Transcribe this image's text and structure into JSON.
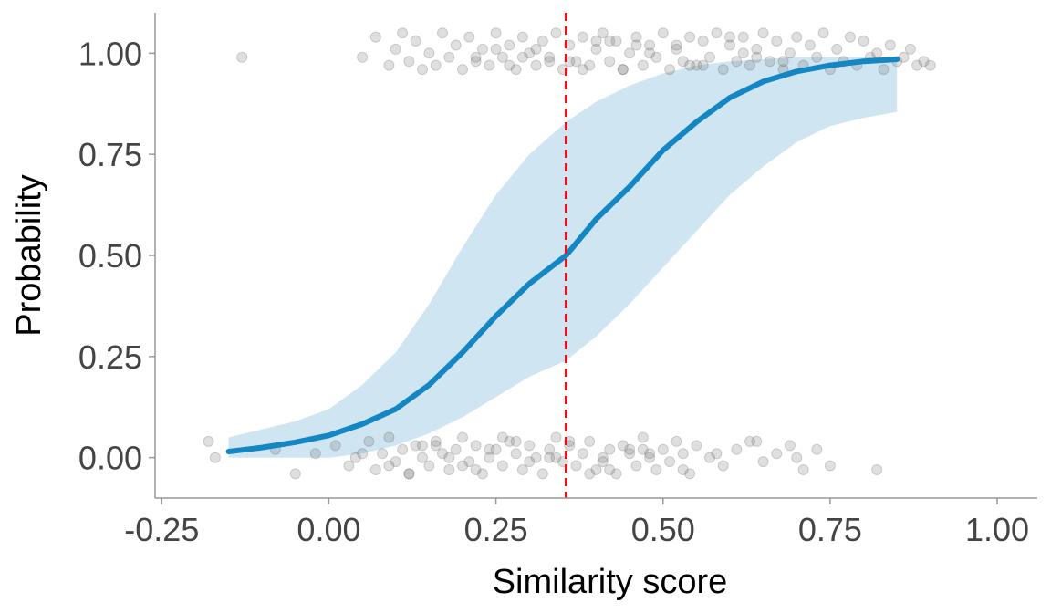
{
  "chart_data": {
    "type": "scatter",
    "title": "",
    "xlabel": "Similarity score",
    "ylabel": "Probability",
    "xlim": [
      -0.26,
      1.06
    ],
    "ylim": [
      -0.1,
      1.1
    ],
    "grid": false,
    "x_ticks": [
      -0.25,
      0.0,
      0.25,
      0.5,
      0.75,
      1.0
    ],
    "x_tick_labels": [
      "-0.25",
      "0.00",
      "0.25",
      "0.50",
      "0.75",
      "1.00"
    ],
    "y_ticks": [
      0.0,
      0.25,
      0.5,
      0.75,
      1.0
    ],
    "y_tick_labels": [
      "0.00",
      "0.25",
      "0.50",
      "0.75",
      "1.00"
    ],
    "threshold_x": 0.355,
    "colors": {
      "fit_line": "#1386c3",
      "ribbon": "#cfe5f2",
      "threshold": "#e8111a",
      "points": "#6e6e6e",
      "axis": "#999999"
    },
    "fit_curve": {
      "x": [
        -0.15,
        -0.1,
        -0.05,
        0.0,
        0.05,
        0.1,
        0.15,
        0.2,
        0.25,
        0.3,
        0.355,
        0.4,
        0.45,
        0.5,
        0.55,
        0.6,
        0.65,
        0.7,
        0.75,
        0.8,
        0.85
      ],
      "y": [
        0.015,
        0.025,
        0.038,
        0.055,
        0.083,
        0.12,
        0.18,
        0.26,
        0.35,
        0.43,
        0.5,
        0.59,
        0.67,
        0.76,
        0.83,
        0.89,
        0.93,
        0.955,
        0.97,
        0.98,
        0.985
      ],
      "lower": [
        0.0,
        0.0,
        0.0,
        0.0,
        0.01,
        0.03,
        0.06,
        0.1,
        0.15,
        0.2,
        0.24,
        0.3,
        0.38,
        0.47,
        0.56,
        0.65,
        0.72,
        0.78,
        0.82,
        0.84,
        0.855
      ],
      "upper": [
        0.05,
        0.07,
        0.09,
        0.12,
        0.18,
        0.26,
        0.38,
        0.52,
        0.65,
        0.75,
        0.83,
        0.88,
        0.92,
        0.95,
        0.97,
        0.98,
        0.985,
        0.99,
        0.99,
        0.99,
        0.99
      ]
    },
    "series": [
      {
        "outcome": 1,
        "x": [
          -0.13,
          0.05,
          0.07,
          0.09,
          0.1,
          0.11,
          0.12,
          0.13,
          0.14,
          0.15,
          0.16,
          0.17,
          0.18,
          0.19,
          0.2,
          0.21,
          0.22,
          0.23,
          0.24,
          0.25,
          0.26,
          0.27,
          0.28,
          0.29,
          0.3,
          0.31,
          0.32,
          0.33,
          0.34,
          0.35,
          0.36,
          0.37,
          0.38,
          0.39,
          0.4,
          0.41,
          0.42,
          0.43,
          0.44,
          0.45,
          0.46,
          0.47,
          0.48,
          0.49,
          0.5,
          0.51,
          0.52,
          0.53,
          0.54,
          0.55,
          0.56,
          0.57,
          0.58,
          0.59,
          0.6,
          0.61,
          0.62,
          0.63,
          0.64,
          0.65,
          0.66,
          0.67,
          0.68,
          0.69,
          0.7,
          0.71,
          0.72,
          0.73,
          0.74,
          0.75,
          0.76,
          0.77,
          0.78,
          0.79,
          0.8,
          0.81,
          0.82,
          0.83,
          0.84,
          0.85,
          0.86,
          0.87,
          0.88,
          0.89,
          0.9,
          0.22,
          0.27,
          0.31,
          0.36,
          0.4,
          0.44,
          0.48,
          0.52,
          0.56,
          0.6,
          0.64,
          0.68,
          0.25,
          0.33,
          0.42,
          0.38,
          0.29,
          0.46,
          0.54,
          0.62
        ],
        "y": [
          0.99,
          0.99,
          1.04,
          0.97,
          1.01,
          1.05,
          0.98,
          1.03,
          0.96,
          1.0,
          0.97,
          1.05,
          0.99,
          1.02,
          0.96,
          1.04,
          0.98,
          1.01,
          0.97,
          1.05,
          0.99,
          1.02,
          0.96,
          1.04,
          1.0,
          0.97,
          1.03,
          0.99,
          1.05,
          0.96,
          1.02,
          0.98,
          1.04,
          0.97,
          1.01,
          1.05,
          0.98,
          1.03,
          0.96,
          1.0,
          1.04,
          0.97,
          1.02,
          0.99,
          1.05,
          0.96,
          1.01,
          0.98,
          1.04,
          0.97,
          1.03,
          0.99,
          1.05,
          0.96,
          1.02,
          0.98,
          1.04,
          0.97,
          1.01,
          1.05,
          0.98,
          1.03,
          0.96,
          1.0,
          1.04,
          0.97,
          1.02,
          0.99,
          1.05,
          0.96,
          1.01,
          0.98,
          1.04,
          0.97,
          1.03,
          0.99,
          1.0,
          0.96,
          1.02,
          0.98,
          0.99,
          1.01,
          0.97,
          0.98,
          0.97,
          0.99,
          0.97,
          1.01,
          0.98,
          1.03,
          0.96,
          1.0,
          1.02,
          0.97,
          1.04,
          0.99,
          0.98,
          1.01,
          0.98,
          1.03,
          0.96,
          0.99,
          1.02,
          0.97,
          1.0
        ]
      },
      {
        "outcome": 0,
        "x": [
          -0.18,
          -0.17,
          -0.08,
          -0.05,
          -0.02,
          0.01,
          0.03,
          0.04,
          0.06,
          0.07,
          0.08,
          0.09,
          0.1,
          0.11,
          0.12,
          0.13,
          0.14,
          0.15,
          0.16,
          0.17,
          0.18,
          0.19,
          0.2,
          0.21,
          0.22,
          0.23,
          0.24,
          0.25,
          0.26,
          0.27,
          0.28,
          0.29,
          0.3,
          0.31,
          0.32,
          0.33,
          0.34,
          0.35,
          0.36,
          0.37,
          0.38,
          0.39,
          0.4,
          0.41,
          0.42,
          0.43,
          0.44,
          0.45,
          0.46,
          0.47,
          0.48,
          0.49,
          0.5,
          0.51,
          0.52,
          0.53,
          0.54,
          0.55,
          0.57,
          0.59,
          0.61,
          0.63,
          0.65,
          0.67,
          0.69,
          0.71,
          0.73,
          0.75,
          0.82,
          0.12,
          0.18,
          0.24,
          0.3,
          0.36,
          0.42,
          0.48,
          0.14,
          0.2,
          0.26,
          0.33,
          0.39,
          0.45,
          0.05,
          0.09,
          0.16,
          0.22,
          0.28,
          0.34,
          0.41,
          0.47,
          0.53,
          0.58,
          0.64,
          0.7
        ],
        "y": [
          0.04,
          0.0,
          0.02,
          -0.04,
          0.01,
          0.03,
          -0.02,
          0.0,
          0.04,
          -0.03,
          0.01,
          0.05,
          -0.01,
          0.02,
          -0.04,
          0.03,
          0.0,
          -0.02,
          0.04,
          0.01,
          -0.03,
          0.02,
          0.05,
          -0.01,
          0.03,
          -0.04,
          0.0,
          0.02,
          -0.02,
          0.04,
          0.01,
          -0.03,
          0.03,
          0.0,
          -0.04,
          0.02,
          0.05,
          -0.01,
          0.03,
          -0.02,
          0.01,
          0.04,
          -0.03,
          0.0,
          0.02,
          -0.04,
          0.03,
          0.01,
          -0.02,
          0.05,
          0.0,
          -0.03,
          0.02,
          -0.01,
          0.04,
          0.01,
          -0.04,
          0.03,
          0.0,
          -0.02,
          0.02,
          0.04,
          -0.01,
          0.01,
          0.03,
          -0.03,
          0.02,
          -0.02,
          -0.03,
          -0.04,
          0.0,
          0.02,
          -0.01,
          0.04,
          -0.03,
          0.01,
          0.03,
          -0.02,
          0.05,
          0.0,
          -0.04,
          0.02,
          0.01,
          -0.02,
          0.03,
          -0.03,
          0.04,
          0.0,
          -0.01,
          0.02,
          -0.03,
          0.01,
          0.04,
          0.0
        ]
      }
    ]
  }
}
